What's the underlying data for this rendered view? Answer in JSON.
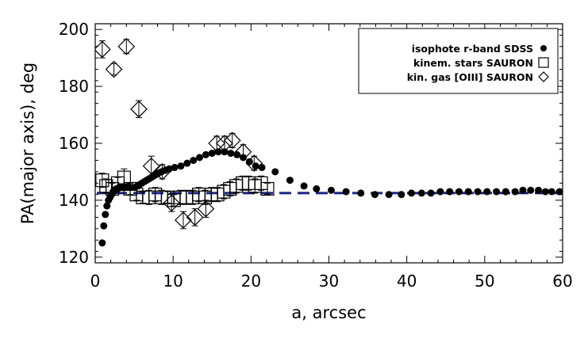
{
  "chart_data": {
    "type": "scatter",
    "xlabel": "a, arcsec",
    "ylabel": "PA(major axis), deg",
    "xlim": [
      0,
      60
    ],
    "ylim": [
      118,
      202
    ],
    "x_ticks": [
      0,
      10,
      20,
      30,
      40,
      50,
      60
    ],
    "y_ticks": [
      120,
      140,
      160,
      180,
      200
    ],
    "legend_position": "top-right",
    "reference_line": {
      "y": 142.5,
      "style": "dashed",
      "color": "#1a237e"
    },
    "series": [
      {
        "name": "isophote r-band SDSS",
        "marker": "filled-circle",
        "points": [
          [
            0.9,
            125
          ],
          [
            1.1,
            131
          ],
          [
            1.3,
            135
          ],
          [
            1.5,
            138
          ],
          [
            1.7,
            140
          ],
          [
            1.9,
            141
          ],
          [
            2.1,
            142
          ],
          [
            2.3,
            143
          ],
          [
            2.5,
            143.5
          ],
          [
            2.7,
            144
          ],
          [
            2.9,
            144
          ],
          [
            3.1,
            144.5
          ],
          [
            3.3,
            144.5
          ],
          [
            3.6,
            144.5
          ],
          [
            3.9,
            144.5
          ],
          [
            4.2,
            144.5
          ],
          [
            4.5,
            144.5
          ],
          [
            4.8,
            144.5
          ],
          [
            5.1,
            144.5
          ],
          [
            5.4,
            145
          ],
          [
            5.7,
            145.5
          ],
          [
            6.0,
            146
          ],
          [
            6.3,
            146.5
          ],
          [
            6.6,
            147
          ],
          [
            6.9,
            147.5
          ],
          [
            7.2,
            148
          ],
          [
            7.5,
            148.5
          ],
          [
            7.8,
            149
          ],
          [
            8.1,
            149.5
          ],
          [
            8.5,
            150
          ],
          [
            9.0,
            150.5
          ],
          [
            9.5,
            151
          ],
          [
            10.2,
            151.5
          ],
          [
            11.0,
            152
          ],
          [
            11.8,
            153
          ],
          [
            12.6,
            154
          ],
          [
            13.4,
            155
          ],
          [
            14.2,
            156
          ],
          [
            15.0,
            156.5
          ],
          [
            15.8,
            157
          ],
          [
            16.6,
            157
          ],
          [
            17.4,
            156.5
          ],
          [
            18.2,
            156
          ],
          [
            19.0,
            155
          ],
          [
            19.8,
            153.5
          ],
          [
            20.6,
            152
          ],
          [
            21.4,
            151.5
          ],
          [
            23.1,
            150
          ],
          [
            25.0,
            147
          ],
          [
            26.8,
            145
          ],
          [
            28.4,
            144
          ],
          [
            30.3,
            143.5
          ],
          [
            32.2,
            143
          ],
          [
            34.1,
            142.5
          ],
          [
            35.9,
            142
          ],
          [
            37.7,
            142
          ],
          [
            39.3,
            142
          ],
          [
            40.6,
            142.5
          ],
          [
            41.9,
            142.5
          ],
          [
            43.1,
            142.5
          ],
          [
            44.3,
            143
          ],
          [
            45.5,
            143
          ],
          [
            46.7,
            143
          ],
          [
            47.9,
            143
          ],
          [
            49.1,
            143
          ],
          [
            50.3,
            143
          ],
          [
            51.5,
            143
          ],
          [
            52.7,
            143
          ],
          [
            53.9,
            143
          ],
          [
            54.9,
            143.5
          ],
          [
            55.9,
            143.5
          ],
          [
            56.9,
            143.5
          ],
          [
            57.8,
            143
          ],
          [
            58.6,
            143
          ],
          [
            59.6,
            143
          ]
        ]
      },
      {
        "name": "kinem. stars SAURON",
        "marker": "open-square",
        "points": [
          [
            0.9,
            147,
            2.5
          ],
          [
            1.4,
            145,
            2.5
          ],
          [
            2.2,
            144,
            2.0
          ],
          [
            2.9,
            146,
            2.0
          ],
          [
            3.7,
            148,
            3.0
          ],
          [
            4.5,
            144,
            2.0
          ],
          [
            5.3,
            142,
            2.0
          ],
          [
            6.1,
            141,
            2.0
          ],
          [
            6.9,
            141,
            2.5
          ],
          [
            7.7,
            142,
            2.5
          ],
          [
            8.5,
            141,
            2.5
          ],
          [
            9.3,
            141,
            2.0
          ],
          [
            10.1,
            140,
            2.0
          ],
          [
            10.9,
            141,
            2.5
          ],
          [
            11.7,
            141,
            2.5
          ],
          [
            12.5,
            141,
            2.5
          ],
          [
            13.3,
            142,
            2.5
          ],
          [
            14.1,
            141,
            2.5
          ],
          [
            14.9,
            142,
            2.5
          ],
          [
            15.7,
            142,
            2.5
          ],
          [
            16.5,
            143,
            2.5
          ],
          [
            17.3,
            144,
            2.5
          ],
          [
            18.1,
            145,
            2.5
          ],
          [
            18.9,
            146,
            2.5
          ],
          [
            19.7,
            146,
            2.5
          ],
          [
            20.5,
            145,
            2.5
          ],
          [
            21.3,
            146,
            2.5
          ],
          [
            22.1,
            144,
            2.0
          ]
        ]
      },
      {
        "name": "kin. gas [OIII] SAURON",
        "marker": "open-diamond",
        "points": [
          [
            0.9,
            193,
            3.0
          ],
          [
            2.4,
            186,
            2.0
          ],
          [
            4.0,
            194,
            2.5
          ],
          [
            5.6,
            172,
            3.0
          ],
          [
            7.2,
            152,
            3.5
          ],
          [
            8.6,
            150,
            2.5
          ],
          [
            9.8,
            139,
            3.0
          ],
          [
            11.3,
            133,
            3.0
          ],
          [
            12.8,
            134,
            3.0
          ],
          [
            14.2,
            137,
            3.0
          ],
          [
            15.6,
            160,
            2.5
          ],
          [
            16.6,
            160,
            2.5
          ],
          [
            17.6,
            161,
            2.5
          ],
          [
            19.0,
            157,
            2.5
          ],
          [
            20.4,
            153,
            2.5
          ]
        ]
      }
    ]
  }
}
